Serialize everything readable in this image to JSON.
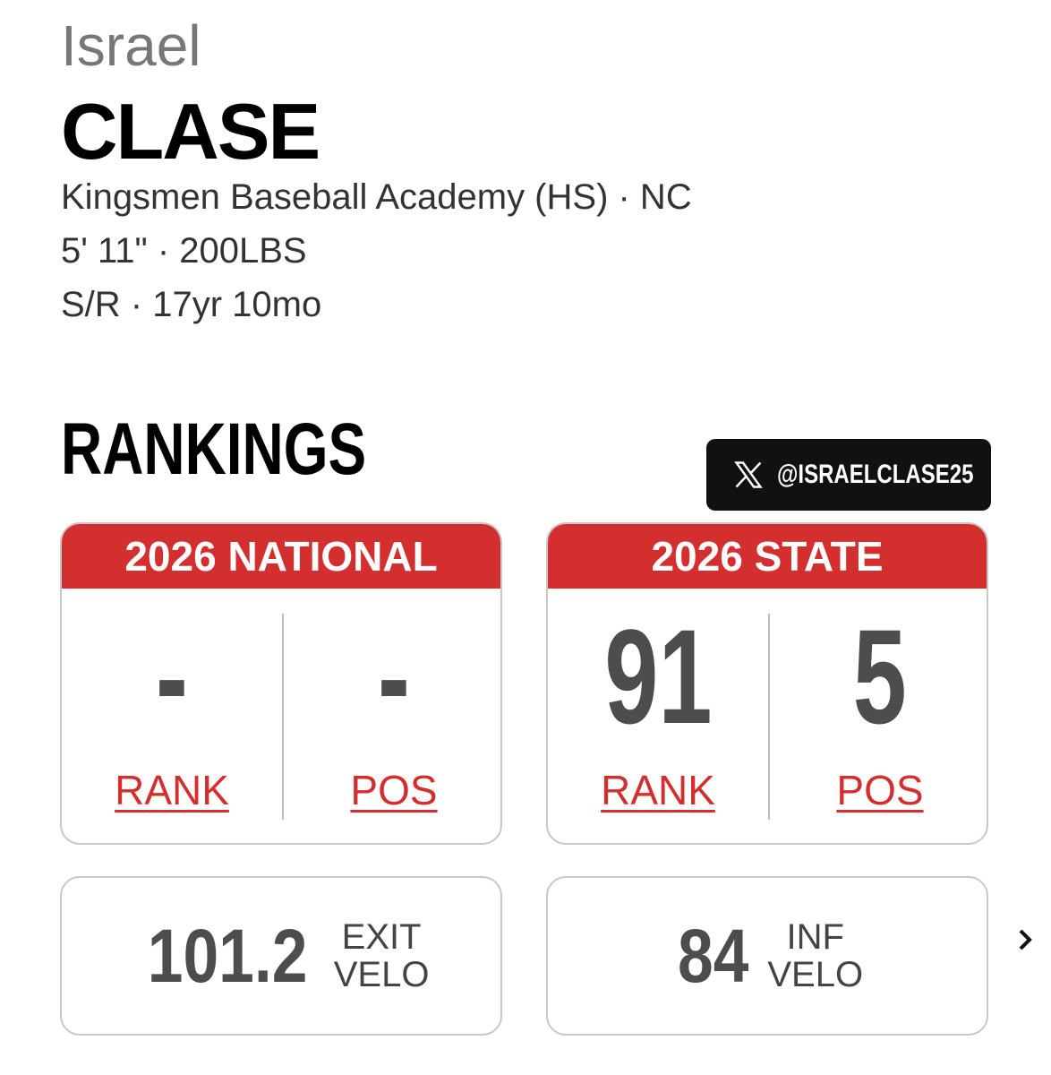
{
  "player": {
    "first_name": "Israel",
    "last_name": "CLASE",
    "school": "Kingsmen Baseball Academy (HS) · NC",
    "size": "5' 11\" · 200LBS",
    "details": "S/R · 17yr 10mo"
  },
  "rankings": {
    "title": "RANKINGS",
    "social_handle": "@ISRAELCLASE25",
    "cards": [
      {
        "title": "2026 NATIONAL",
        "rank": "-",
        "rank_label": "RANK",
        "pos": "-",
        "pos_label": "POS"
      },
      {
        "title": "2026 STATE",
        "rank": 91,
        "rank_label": "RANK",
        "pos": 5,
        "pos_label": "POS"
      }
    ]
  },
  "stats": [
    {
      "value": 101.2,
      "label": [
        "EXIT",
        "VELO"
      ]
    },
    {
      "value": 84,
      "label": [
        "INF",
        "VELO"
      ]
    }
  ]
}
